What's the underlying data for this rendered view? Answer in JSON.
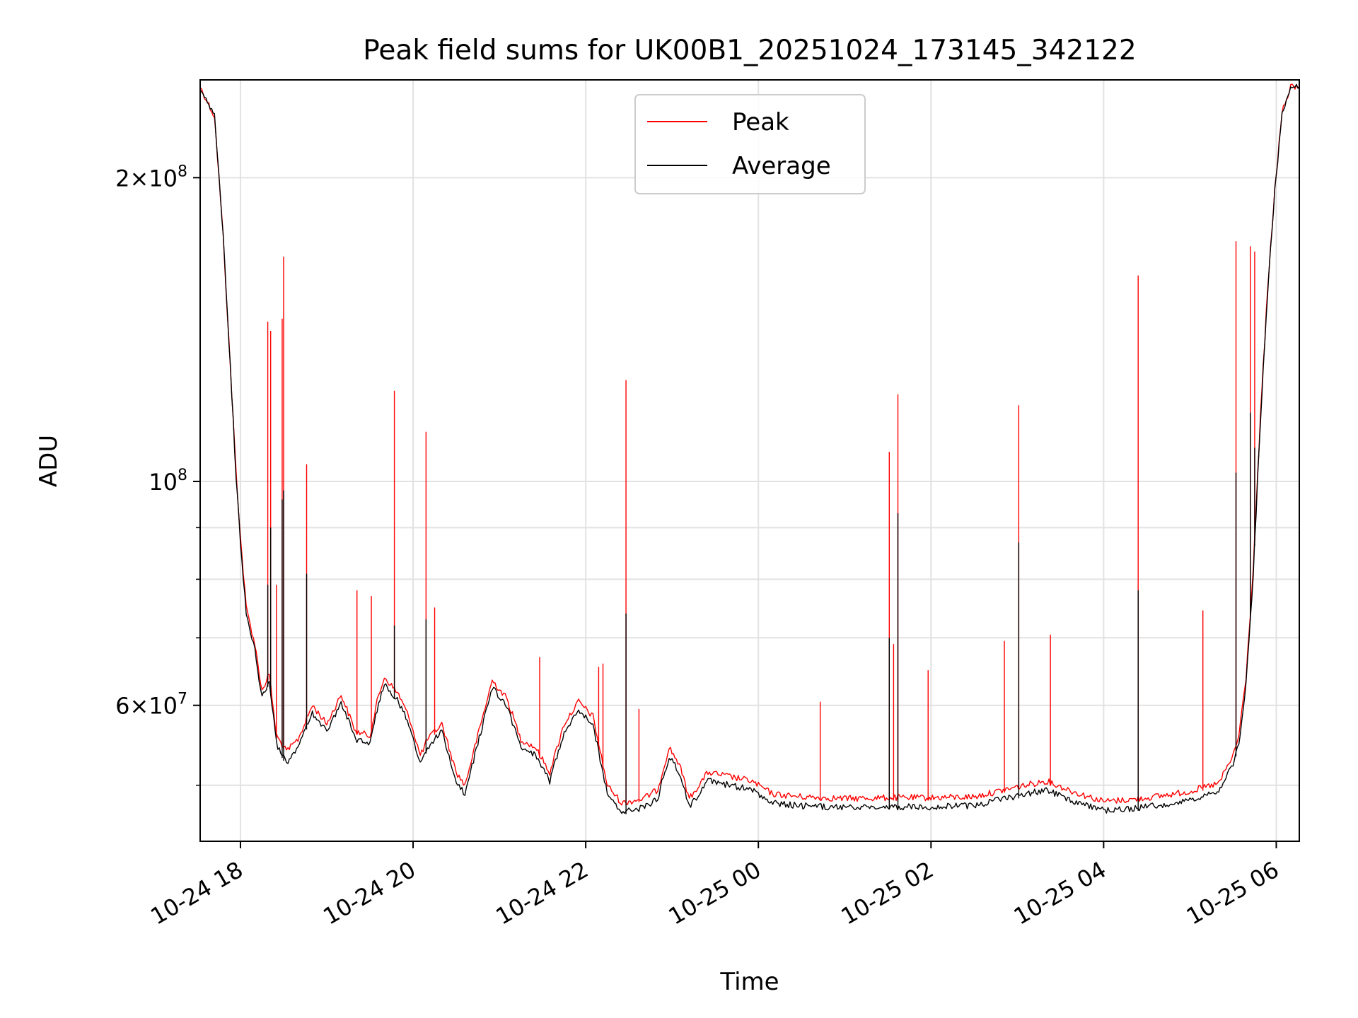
{
  "chart_data": {
    "type": "line",
    "title": "Peak field sums for UK00B1_20251024_173145_342122",
    "xlabel": "Time",
    "ylabel": "ADU",
    "yscale": "log",
    "grid": true,
    "legend_position": "upper center",
    "x_range": [
      "2025-10-24 17:32",
      "2025-10-25 06:16"
    ],
    "ylim": [
      44000000,
      250000000
    ],
    "x_ticks": [
      {
        "t": "2025-10-24 18:00",
        "label": "10-24 18"
      },
      {
        "t": "2025-10-24 20:00",
        "label": "10-24 20"
      },
      {
        "t": "2025-10-24 22:00",
        "label": "10-24 22"
      },
      {
        "t": "2025-10-25 00:00",
        "label": "10-25 00"
      },
      {
        "t": "2025-10-25 02:00",
        "label": "10-25 02"
      },
      {
        "t": "2025-10-25 04:00",
        "label": "10-25 04"
      },
      {
        "t": "2025-10-25 06:00",
        "label": "10-25 06"
      }
    ],
    "y_major_ticks": [
      {
        "v": 60000000,
        "base": "6",
        "exp": "7"
      },
      {
        "v": 100000000,
        "base": "",
        "exp": "8"
      },
      {
        "v": 200000000,
        "base": "2",
        "exp": "8"
      }
    ],
    "y_minor_ticks": [
      50000000,
      70000000,
      80000000,
      90000000
    ],
    "series": [
      {
        "name": "Peak",
        "color": "#ff0000",
        "baseline": [
          [
            "2025-10-24 17:32",
            246000000
          ],
          [
            "2025-10-24 17:42",
            230000000
          ],
          [
            "2025-10-24 17:48",
            175000000
          ],
          [
            "2025-10-24 17:54",
            122000000
          ],
          [
            "2025-10-24 17:57",
            102000000
          ],
          [
            "2025-10-24 18:00",
            88000000
          ],
          [
            "2025-10-24 18:04",
            75000000
          ],
          [
            "2025-10-24 18:10",
            69000000
          ],
          [
            "2025-10-24 18:15",
            62000000
          ],
          [
            "2025-10-24 18:20",
            64500000
          ],
          [
            "2025-10-24 18:25",
            56000000
          ],
          [
            "2025-10-24 18:32",
            54000000
          ],
          [
            "2025-10-24 18:40",
            55500000
          ],
          [
            "2025-10-24 18:50",
            60000000
          ],
          [
            "2025-10-24 19:00",
            57500000
          ],
          [
            "2025-10-24 19:10",
            61500000
          ],
          [
            "2025-10-24 19:20",
            56500000
          ],
          [
            "2025-10-24 19:30",
            56000000
          ],
          [
            "2025-10-24 19:35",
            60500000
          ],
          [
            "2025-10-24 19:40",
            64000000
          ],
          [
            "2025-10-24 19:50",
            61500000
          ],
          [
            "2025-10-24 19:58",
            58000000
          ],
          [
            "2025-10-24 20:05",
            53500000
          ],
          [
            "2025-10-24 20:10",
            55500000
          ],
          [
            "2025-10-24 20:20",
            57500000
          ],
          [
            "2025-10-24 20:30",
            51500000
          ],
          [
            "2025-10-24 20:36",
            50000000
          ],
          [
            "2025-10-24 20:45",
            56000000
          ],
          [
            "2025-10-24 20:55",
            63500000
          ],
          [
            "2025-10-24 21:05",
            61000000
          ],
          [
            "2025-10-24 21:15",
            55500000
          ],
          [
            "2025-10-24 21:25",
            54500000
          ],
          [
            "2025-10-24 21:35",
            51500000
          ],
          [
            "2025-10-24 21:45",
            57500000
          ],
          [
            "2025-10-24 21:55",
            60500000
          ],
          [
            "2025-10-24 22:05",
            58500000
          ],
          [
            "2025-10-24 22:15",
            50000000
          ],
          [
            "2025-10-24 22:25",
            48000000
          ],
          [
            "2025-10-24 22:40",
            48500000
          ],
          [
            "2025-10-24 22:50",
            49500000
          ],
          [
            "2025-10-24 22:58",
            54500000
          ],
          [
            "2025-10-24 23:05",
            52500000
          ],
          [
            "2025-10-24 23:12",
            48500000
          ],
          [
            "2025-10-24 23:25",
            51500000
          ],
          [
            "2025-10-24 23:40",
            51000000
          ],
          [
            "2025-10-24 23:55",
            50500000
          ],
          [
            "2025-10-25 00:10",
            49000000
          ],
          [
            "2025-10-25 00:30",
            48700000
          ],
          [
            "2025-10-25 01:00",
            48500000
          ],
          [
            "2025-10-25 01:30",
            48600000
          ],
          [
            "2025-10-25 02:00",
            48600000
          ],
          [
            "2025-10-25 02:30",
            48700000
          ],
          [
            "2025-10-25 03:00",
            49800000
          ],
          [
            "2025-10-25 03:20",
            50500000
          ],
          [
            "2025-10-25 03:40",
            49200000
          ],
          [
            "2025-10-25 04:00",
            48200000
          ],
          [
            "2025-10-25 04:20",
            48400000
          ],
          [
            "2025-10-25 04:40",
            48800000
          ],
          [
            "2025-10-25 05:00",
            49300000
          ],
          [
            "2025-10-25 05:20",
            50200000
          ],
          [
            "2025-10-25 05:30",
            53500000
          ],
          [
            "2025-10-25 05:34",
            56000000
          ],
          [
            "2025-10-25 05:39",
            64000000
          ],
          [
            "2025-10-25 05:44",
            82000000
          ],
          [
            "2025-10-25 05:49",
            116000000
          ],
          [
            "2025-10-25 05:54",
            155000000
          ],
          [
            "2025-10-25 05:59",
            195000000
          ],
          [
            "2025-10-25 06:04",
            232000000
          ],
          [
            "2025-10-25 06:10",
            246000000
          ],
          [
            "2025-10-25 06:16",
            246000000
          ]
        ],
        "spikes": [
          [
            "2025-10-24 18:19",
            144000000
          ],
          [
            "2025-10-24 18:21",
            141000000
          ],
          [
            "2025-10-24 18:25",
            79000000
          ],
          [
            "2025-10-24 18:29",
            145000000
          ],
          [
            "2025-10-24 18:30",
            167000000
          ],
          [
            "2025-10-24 18:46",
            104000000
          ],
          [
            "2025-10-24 19:21",
            78000000
          ],
          [
            "2025-10-24 19:31",
            77000000
          ],
          [
            "2025-10-24 19:47",
            123000000
          ],
          [
            "2025-10-24 20:09",
            112000000
          ],
          [
            "2025-10-24 20:15",
            75000000
          ],
          [
            "2025-10-24 21:28",
            67000000
          ],
          [
            "2025-10-24 22:09",
            65500000
          ],
          [
            "2025-10-24 22:12",
            66000000
          ],
          [
            "2025-10-24 22:28",
            126000000
          ],
          [
            "2025-10-24 22:37",
            59500000
          ],
          [
            "2025-10-25 00:43",
            60500000
          ],
          [
            "2025-10-25 01:31",
            107000000
          ],
          [
            "2025-10-25 01:34",
            69000000
          ],
          [
            "2025-10-25 01:37",
            122000000
          ],
          [
            "2025-10-25 01:58",
            65000000
          ],
          [
            "2025-10-25 02:51",
            69500000
          ],
          [
            "2025-10-25 03:01",
            119000000
          ],
          [
            "2025-10-25 03:23",
            70500000
          ],
          [
            "2025-10-25 04:24",
            160000000
          ],
          [
            "2025-10-25 05:09",
            74500000
          ],
          [
            "2025-10-25 05:32",
            173000000
          ],
          [
            "2025-10-25 05:42",
            171000000
          ],
          [
            "2025-10-25 05:45",
            169000000
          ]
        ]
      },
      {
        "name": "Average",
        "color": "#000000",
        "baseline": [
          [
            "2025-10-24 17:32",
            246000000
          ],
          [
            "2025-10-24 17:42",
            230000000
          ],
          [
            "2025-10-24 17:48",
            175000000
          ],
          [
            "2025-10-24 17:54",
            122000000
          ],
          [
            "2025-10-24 17:57",
            101000000
          ],
          [
            "2025-10-24 18:00",
            87000000
          ],
          [
            "2025-10-24 18:04",
            74000000
          ],
          [
            "2025-10-24 18:10",
            68000000
          ],
          [
            "2025-10-24 18:15",
            61000000
          ],
          [
            "2025-10-24 18:20",
            63500000
          ],
          [
            "2025-10-24 18:25",
            55000000
          ],
          [
            "2025-10-24 18:32",
            52500000
          ],
          [
            "2025-10-24 18:40",
            54500000
          ],
          [
            "2025-10-24 18:50",
            59000000
          ],
          [
            "2025-10-24 19:00",
            56500000
          ],
          [
            "2025-10-24 19:10",
            60500000
          ],
          [
            "2025-10-24 19:20",
            55500000
          ],
          [
            "2025-10-24 19:30",
            55000000
          ],
          [
            "2025-10-24 19:35",
            59500000
          ],
          [
            "2025-10-24 19:40",
            63000000
          ],
          [
            "2025-10-24 19:50",
            60500000
          ],
          [
            "2025-10-24 19:58",
            57000000
          ],
          [
            "2025-10-24 20:05",
            52500000
          ],
          [
            "2025-10-24 20:10",
            54500000
          ],
          [
            "2025-10-24 20:20",
            56500000
          ],
          [
            "2025-10-24 20:30",
            50500000
          ],
          [
            "2025-10-24 20:36",
            49000000
          ],
          [
            "2025-10-24 20:45",
            55000000
          ],
          [
            "2025-10-24 20:55",
            62500000
          ],
          [
            "2025-10-24 21:05",
            60000000
          ],
          [
            "2025-10-24 21:15",
            54500000
          ],
          [
            "2025-10-24 21:25",
            53500000
          ],
          [
            "2025-10-24 21:35",
            50500000
          ],
          [
            "2025-10-24 21:45",
            56500000
          ],
          [
            "2025-10-24 21:55",
            59500000
          ],
          [
            "2025-10-24 22:05",
            57500000
          ],
          [
            "2025-10-24 22:15",
            49000000
          ],
          [
            "2025-10-24 22:25",
            47000000
          ],
          [
            "2025-10-24 22:40",
            47500000
          ],
          [
            "2025-10-24 22:50",
            48500000
          ],
          [
            "2025-10-24 22:58",
            53500000
          ],
          [
            "2025-10-24 23:05",
            51500000
          ],
          [
            "2025-10-24 23:12",
            47500000
          ],
          [
            "2025-10-24 23:25",
            50500000
          ],
          [
            "2025-10-24 23:40",
            50000000
          ],
          [
            "2025-10-24 23:55",
            49500000
          ],
          [
            "2025-10-25 00:10",
            48000000
          ],
          [
            "2025-10-25 00:30",
            47700000
          ],
          [
            "2025-10-25 01:00",
            47500000
          ],
          [
            "2025-10-25 01:30",
            47600000
          ],
          [
            "2025-10-25 02:00",
            47600000
          ],
          [
            "2025-10-25 02:30",
            47700000
          ],
          [
            "2025-10-25 03:00",
            48800000
          ],
          [
            "2025-10-25 03:20",
            49500000
          ],
          [
            "2025-10-25 03:40",
            48200000
          ],
          [
            "2025-10-25 04:00",
            47200000
          ],
          [
            "2025-10-25 04:20",
            47400000
          ],
          [
            "2025-10-25 04:40",
            47800000
          ],
          [
            "2025-10-25 05:00",
            48300000
          ],
          [
            "2025-10-25 05:20",
            49200000
          ],
          [
            "2025-10-25 05:30",
            52500000
          ],
          [
            "2025-10-25 05:34",
            55000000
          ],
          [
            "2025-10-25 05:39",
            63000000
          ],
          [
            "2025-10-25 05:44",
            81000000
          ],
          [
            "2025-10-25 05:49",
            115000000
          ],
          [
            "2025-10-25 05:54",
            154000000
          ],
          [
            "2025-10-25 05:59",
            194000000
          ],
          [
            "2025-10-25 06:04",
            231000000
          ],
          [
            "2025-10-25 06:10",
            246000000
          ],
          [
            "2025-10-25 06:16",
            246000000
          ]
        ],
        "spikes": [
          [
            "2025-10-24 18:19",
            79000000
          ],
          [
            "2025-10-24 18:21",
            90000000
          ],
          [
            "2025-10-24 18:29",
            96000000
          ],
          [
            "2025-10-24 18:30",
            98000000
          ],
          [
            "2025-10-24 18:46",
            81000000
          ],
          [
            "2025-10-24 19:47",
            72000000
          ],
          [
            "2025-10-24 20:09",
            73000000
          ],
          [
            "2025-10-24 22:28",
            74000000
          ],
          [
            "2025-10-25 01:31",
            70000000
          ],
          [
            "2025-10-25 01:37",
            93000000
          ],
          [
            "2025-10-25 03:01",
            87000000
          ],
          [
            "2025-10-25 04:24",
            78000000
          ],
          [
            "2025-10-25 05:32",
            102000000
          ],
          [
            "2025-10-25 05:42",
            117000000
          ],
          [
            "2025-10-25 05:45",
            108000000
          ]
        ]
      }
    ]
  }
}
